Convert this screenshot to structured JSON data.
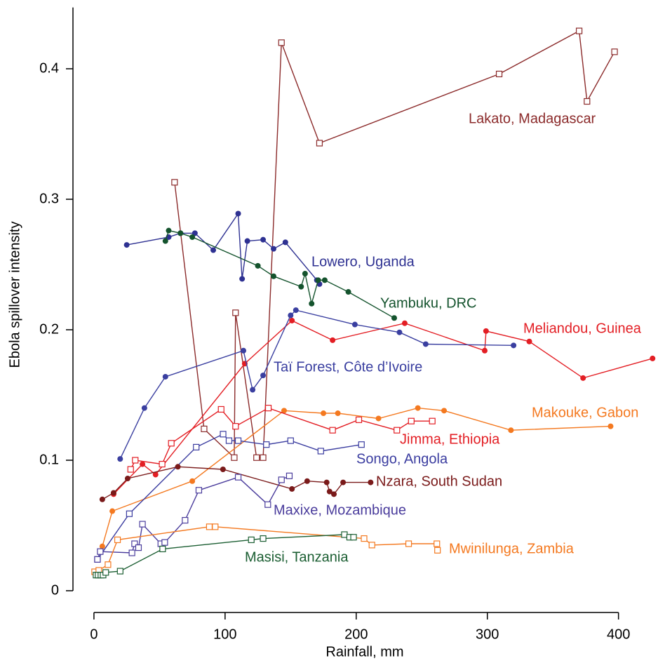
{
  "chart_data": {
    "type": "line",
    "x_label": "Rainfall, mm",
    "y_label": "Ebola spillover intensity",
    "xlim": [
      -16,
      428
    ],
    "ylim": [
      -0.017,
      0.447
    ],
    "xticks": [
      0,
      100,
      200,
      300,
      400
    ],
    "yticks": [
      0,
      0.1,
      0.2,
      0.3,
      0.4
    ],
    "series": [
      {
        "name": "Lakato, Madagascar",
        "color": "#8B2A2A",
        "marker": "square",
        "x": [
          61.5,
          84,
          107,
          108,
          124,
          129,
          143,
          172,
          309,
          370,
          376,
          397
        ],
        "values": [
          0.313,
          0.124,
          0.102,
          0.213,
          0.102,
          0.102,
          0.42,
          0.343,
          0.396,
          0.429,
          0.375,
          0.413
        ]
      },
      {
        "name": "Lowero, Uganda",
        "color": "#2E3192",
        "marker": "circle",
        "x": [
          25,
          57,
          66,
          77,
          91,
          110,
          113,
          117,
          129,
          137,
          146,
          170,
          172
        ],
        "values": [
          0.265,
          0.271,
          0.274,
          0.274,
          0.261,
          0.289,
          0.239,
          0.268,
          0.269,
          0.262,
          0.267,
          0.238,
          0.235
        ]
      },
      {
        "name": "Yambuku, DRC",
        "color": "#14532D",
        "marker": "circle",
        "x": [
          54.5,
          57,
          66,
          75,
          125,
          137,
          158,
          161,
          166,
          171,
          176,
          194,
          229
        ],
        "values": [
          0.268,
          0.276,
          0.274,
          0.271,
          0.249,
          0.241,
          0.233,
          0.243,
          0.22,
          0.238,
          0.238,
          0.229,
          0.209
        ]
      },
      {
        "name": "Meliandou, Guinea",
        "color": "#E31E24",
        "marker": "circle",
        "x": [
          15,
          37,
          47,
          115,
          151,
          182,
          237,
          298,
          299,
          332,
          373,
          426
        ],
        "values": [
          0.074,
          0.097,
          0.089,
          0.174,
          0.207,
          0.192,
          0.205,
          0.184,
          0.199,
          0.191,
          0.163,
          0.178
        ]
      },
      {
        "name": "Taï Forest, Côte d’Ivoire",
        "color": "#3A3FA0",
        "marker": "circle",
        "x": [
          20,
          38.5,
          54.5,
          114,
          121,
          129,
          150,
          154,
          199,
          233,
          253,
          320
        ],
        "values": [
          0.101,
          0.14,
          0.164,
          0.184,
          0.154,
          0.165,
          0.211,
          0.215,
          0.204,
          0.198,
          0.189,
          0.188
        ]
      },
      {
        "name": "Makouke, Gabon",
        "color": "#F47920",
        "marker": "circle",
        "x": [
          6.4,
          14,
          75,
          145,
          175,
          186,
          217,
          247,
          267,
          318,
          394
        ],
        "values": [
          0.034,
          0.061,
          0.084,
          0.138,
          0.136,
          0.136,
          0.132,
          0.14,
          0.138,
          0.123,
          0.126
        ]
      },
      {
        "name": "Jimma, Ethiopia",
        "color": "#E31E24",
        "marker": "square",
        "x": [
          28,
          31.5,
          52,
          59,
          97,
          108,
          133,
          182,
          202,
          231,
          242,
          258
        ],
        "values": [
          0.093,
          0.1,
          0.097,
          0.113,
          0.139,
          0.126,
          0.14,
          0.123,
          0.131,
          0.123,
          0.13,
          0.13
        ]
      },
      {
        "name": "Songo, Angola",
        "color": "#3B3DA0",
        "marker": "square",
        "x": [
          2.7,
          27,
          78,
          98.5,
          103,
          110,
          131.5,
          150,
          173,
          204
        ],
        "values": [
          0.024,
          0.059,
          0.11,
          0.12,
          0.115,
          0.115,
          0.112,
          0.115,
          0.107,
          0.112
        ]
      },
      {
        "name": "Nzara, South Sudan",
        "color": "#7A1A1A",
        "marker": "circle",
        "x": [
          6.4,
          15,
          25.7,
          64,
          98.4,
          151,
          162.6,
          177.5,
          179.7,
          183,
          190,
          211
        ],
        "values": [
          0.07,
          0.075,
          0.086,
          0.095,
          0.093,
          0.078,
          0.084,
          0.083,
          0.076,
          0.074,
          0.083,
          0.083
        ]
      },
      {
        "name": "Maxixe, Mozambique",
        "color": "#4A3C9C",
        "marker": "square",
        "x": [
          2.7,
          4.8,
          29,
          31,
          34,
          37,
          51,
          54,
          69.5,
          80,
          110,
          132.6,
          143,
          149
        ],
        "values": [
          0.024,
          0.03,
          0.029,
          0.036,
          0.033,
          0.051,
          0.036,
          0.037,
          0.054,
          0.077,
          0.087,
          0.066,
          0.085,
          0.088
        ]
      },
      {
        "name": "Mwinilunga, Zambia",
        "color": "#F47920",
        "marker": "square",
        "x": [
          0.5,
          3.7,
          10.7,
          18,
          88,
          92.5,
          206,
          212,
          240,
          261.5,
          262
        ],
        "values": [
          0.0145,
          0.0156,
          0.02,
          0.039,
          0.049,
          0.049,
          0.04,
          0.035,
          0.036,
          0.036,
          0.031
        ]
      },
      {
        "name": "Masisi, Tanzania",
        "color": "#1B5E32",
        "marker": "square",
        "x": [
          1.6,
          3.2,
          5.3,
          7,
          9,
          20,
          52.4,
          120,
          129,
          191,
          195,
          198
        ],
        "values": [
          0.012,
          0.012,
          0.012,
          0.012,
          0.014,
          0.015,
          0.032,
          0.039,
          0.04,
          0.043,
          0.041,
          0.041
        ]
      }
    ]
  }
}
